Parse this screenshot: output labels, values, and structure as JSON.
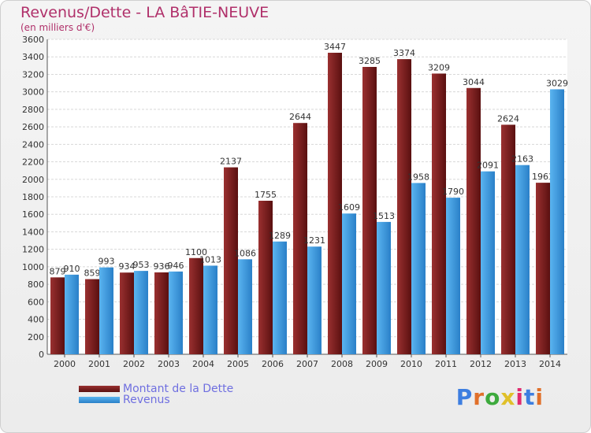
{
  "chart_data": {
    "type": "bar",
    "title": "Revenus/Dette - LA BâTIE-NEUVE",
    "subtitle": "(en milliers d'€)",
    "categories": [
      "2000",
      "2001",
      "2002",
      "2003",
      "2004",
      "2005",
      "2006",
      "2007",
      "2008",
      "2009",
      "2010",
      "2011",
      "2012",
      "2013",
      "2014"
    ],
    "series": [
      {
        "name": "Montant de la Dette",
        "color": "#7a1e1e",
        "values": [
          879,
          859,
          934,
          936,
          1100,
          2137,
          1755,
          2644,
          3447,
          3285,
          3374,
          3209,
          3044,
          2624,
          1961
        ]
      },
      {
        "name": "Revenus",
        "color": "#3d9ee0",
        "values": [
          910,
          993,
          953,
          946,
          1013,
          1086,
          1289,
          1231,
          1609,
          1513,
          1958,
          1790,
          2091,
          2163,
          3029
        ]
      }
    ],
    "ylim": [
      0,
      3600
    ],
    "ytick_step": 200,
    "grid": true,
    "legend_position": "bottom-left"
  },
  "branding": {
    "logo_text": "Proxiti",
    "logo_colors": [
      "#3d7ee0",
      "#e0702a",
      "#3daa3d",
      "#e0c02a",
      "#e02a6f",
      "#3d7ee0",
      "#e0702a"
    ]
  }
}
